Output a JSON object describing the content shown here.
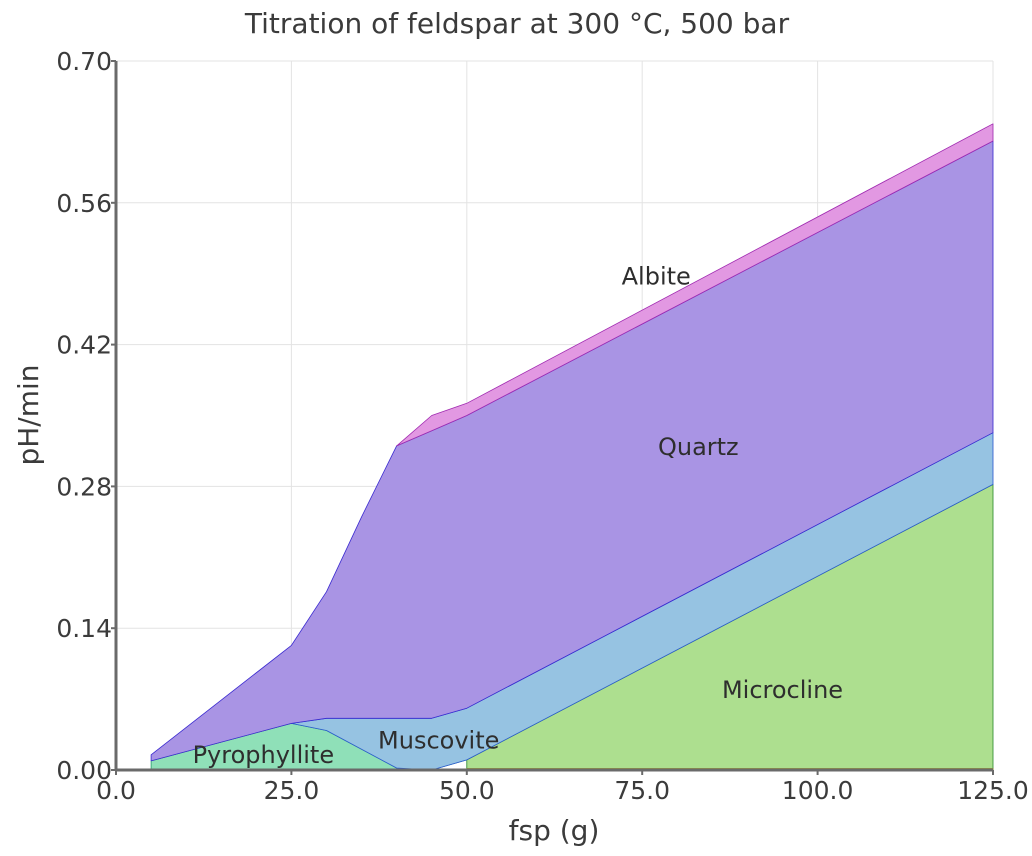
{
  "chart_data": {
    "type": "area",
    "title": "Titration of feldspar at 300 °C, 500 bar",
    "xlabel": "fsp (g)",
    "ylabel": "pH/min",
    "xlim": [
      0,
      125
    ],
    "ylim": [
      0,
      0.7
    ],
    "grid": true,
    "x_ticks": [
      "0.0",
      "25.0",
      "50.0",
      "75.0",
      "100.0",
      "125.0"
    ],
    "y_ticks": [
      "0.00",
      "0.14",
      "0.28",
      "0.42",
      "0.56",
      "0.70"
    ],
    "x_tick_values": [
      0,
      25,
      50,
      75,
      100,
      125
    ],
    "y_tick_values": [
      0,
      0.14,
      0.28,
      0.42,
      0.56,
      0.7
    ],
    "series": [
      {
        "name": "Microcline",
        "color": "#addf8f",
        "stroke": "#2a8a2a",
        "lower": [
          [
            50,
            0
          ],
          [
            125,
            0
          ]
        ],
        "upper": [
          [
            50,
            0.01
          ],
          [
            125,
            0.282
          ]
        ],
        "label_at": [
          95,
          0.08
        ]
      },
      {
        "name": "Pyrophyllite",
        "color": "#8fe0b8",
        "stroke": "#2a9a6a",
        "lower": [
          [
            5,
            0
          ],
          [
            40,
            0
          ],
          [
            45,
            0
          ],
          [
            50,
            0.01
          ]
        ],
        "upper": [
          [
            5,
            0.009
          ],
          [
            25,
            0.046
          ],
          [
            30,
            0.039
          ],
          [
            40,
            0.002
          ],
          [
            45,
            0
          ],
          [
            50,
            0.01
          ]
        ],
        "label_at": [
          21,
          0.016
        ]
      },
      {
        "name": "Muscovite",
        "color": "#96c3e2",
        "stroke": "#2a5ad0",
        "lower": [
          [
            25,
            0.046
          ],
          [
            30,
            0.039
          ],
          [
            40,
            0.002
          ],
          [
            45,
            0
          ],
          [
            50,
            0.01
          ],
          [
            125,
            0.282
          ]
        ],
        "upper": [
          [
            25,
            0.046
          ],
          [
            30,
            0.051
          ],
          [
            40,
            0.051
          ],
          [
            45,
            0.051
          ],
          [
            50,
            0.061
          ],
          [
            125,
            0.333
          ]
        ],
        "label_at": [
          46,
          0.03
        ]
      },
      {
        "name": "Quartz",
        "color": "#a994e4",
        "stroke": "#3a2ad0",
        "lower": [
          [
            5,
            0.009
          ],
          [
            25,
            0.046
          ],
          [
            30,
            0.051
          ],
          [
            40,
            0.051
          ],
          [
            45,
            0.051
          ],
          [
            50,
            0.061
          ],
          [
            125,
            0.333
          ]
        ],
        "upper": [
          [
            5,
            0.015
          ],
          [
            25,
            0.123
          ],
          [
            30,
            0.176
          ],
          [
            35,
            0.25
          ],
          [
            40,
            0.32
          ],
          [
            45,
            0.335
          ],
          [
            50,
            0.35
          ],
          [
            125,
            0.621
          ]
        ],
        "label_at": [
          83,
          0.32
        ]
      },
      {
        "name": "Albite",
        "color": "#e298e2",
        "stroke": "#a02ab0",
        "lower": [
          [
            40,
            0.32
          ],
          [
            45,
            0.335
          ],
          [
            50,
            0.35
          ],
          [
            125,
            0.621
          ]
        ],
        "upper": [
          [
            40,
            0.32
          ],
          [
            45,
            0.35
          ],
          [
            50,
            0.362
          ],
          [
            125,
            0.638
          ]
        ],
        "label_at": [
          77,
          0.488
        ]
      },
      {
        "name": "",
        "color": "#b0a030",
        "stroke": "#9a8a20",
        "lower": [
          [
            50,
            0
          ],
          [
            125,
            0
          ]
        ],
        "upper": [
          [
            50,
            0.0015
          ],
          [
            125,
            0.0015
          ]
        ],
        "label_at": null
      }
    ]
  }
}
